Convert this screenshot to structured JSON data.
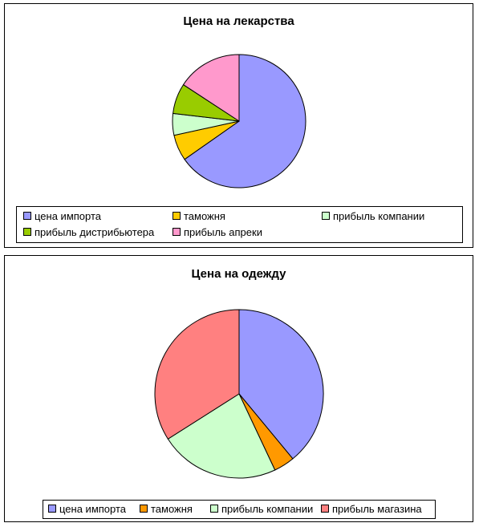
{
  "chart_data": [
    {
      "type": "pie",
      "title": "Цена на лекарства",
      "labels": [
        "цена импорта",
        "таможня",
        "прибыль компании",
        "прибыль дистрибьютера",
        "прибыль апреки"
      ],
      "values": [
        62,
        6,
        5,
        7,
        15
      ],
      "colors": [
        "#9999ff",
        "#ffcc00",
        "#ccffcc",
        "#99cc00",
        "#ff99cc"
      ],
      "legend": "bottom"
    },
    {
      "type": "pie",
      "title": "Цена на одежду",
      "labels": [
        "цена импорта",
        "таможня",
        "прибыль компании",
        "прибыль магазина"
      ],
      "values": [
        39,
        4,
        23,
        34
      ],
      "colors": [
        "#9999ff",
        "#ff9900",
        "#ccffcc",
        "#ff8080"
      ],
      "legend": "bottom"
    }
  ]
}
